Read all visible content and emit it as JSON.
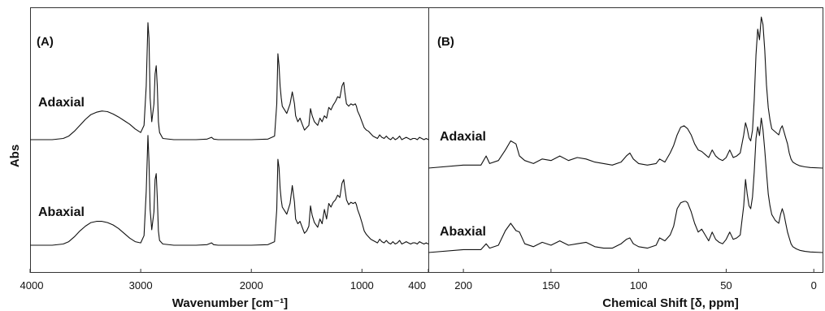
{
  "figure": {
    "y_axis_label": "Abs"
  },
  "chart_data": [
    {
      "type": "line",
      "panel_label": "(A)",
      "xlabel": "Wavenumber [cm⁻¹]",
      "ylabel": "Abs",
      "xlim": [
        4000,
        400
      ],
      "x_reversed": true,
      "xticks": [
        4000,
        3000,
        2000,
        1000,
        400
      ],
      "xtick_labels": [
        "4000",
        "3000",
        "2000",
        "1000",
        "400"
      ],
      "ylim": [
        0,
        1
      ],
      "y_ticks_shown": false,
      "grid": false,
      "series": [
        {
          "name": "Adaxial",
          "x": [
            4000,
            3800,
            3700,
            3650,
            3600,
            3550,
            3500,
            3450,
            3400,
            3350,
            3300,
            3250,
            3200,
            3150,
            3100,
            3050,
            3000,
            2970,
            2950,
            2935,
            2925,
            2915,
            2900,
            2880,
            2870,
            2860,
            2850,
            2840,
            2830,
            2800,
            2700,
            2500,
            2400,
            2360,
            2340,
            2300,
            2000,
            1850,
            1790,
            1770,
            1760,
            1750,
            1740,
            1730,
            1720,
            1700,
            1680,
            1650,
            1630,
            1610,
            1600,
            1580,
            1560,
            1540,
            1520,
            1500,
            1480,
            1465,
            1450,
            1430,
            1400,
            1380,
            1360,
            1340,
            1320,
            1300,
            1280,
            1260,
            1240,
            1220,
            1200,
            1180,
            1165,
            1155,
            1140,
            1120,
            1100,
            1080,
            1060,
            1050,
            1040,
            1020,
            1000,
            980,
            960,
            940,
            920,
            900,
            880,
            860,
            840,
            820,
            800,
            780,
            760,
            740,
            720,
            700,
            680,
            660,
            640,
            620,
            600,
            580,
            560,
            540,
            520,
            500,
            480,
            460,
            440,
            420,
            400
          ],
          "y": [
            0.0,
            0.0,
            0.01,
            0.03,
            0.07,
            0.12,
            0.17,
            0.21,
            0.23,
            0.24,
            0.235,
            0.215,
            0.19,
            0.16,
            0.13,
            0.09,
            0.06,
            0.12,
            0.45,
            0.98,
            0.85,
            0.35,
            0.15,
            0.3,
            0.55,
            0.62,
            0.45,
            0.15,
            0.06,
            0.01,
            0.0,
            0.0,
            0.005,
            0.02,
            0.005,
            0.0,
            0.0,
            0.005,
            0.03,
            0.3,
            0.72,
            0.62,
            0.45,
            0.35,
            0.28,
            0.25,
            0.22,
            0.3,
            0.4,
            0.3,
            0.2,
            0.15,
            0.18,
            0.13,
            0.08,
            0.1,
            0.12,
            0.26,
            0.2,
            0.15,
            0.12,
            0.18,
            0.15,
            0.2,
            0.18,
            0.27,
            0.25,
            0.29,
            0.32,
            0.36,
            0.35,
            0.45,
            0.48,
            0.4,
            0.3,
            0.28,
            0.3,
            0.29,
            0.3,
            0.28,
            0.24,
            0.2,
            0.15,
            0.1,
            0.08,
            0.07,
            0.05,
            0.03,
            0.02,
            0.01,
            0.04,
            0.02,
            0.01,
            0.03,
            0.01,
            0.0,
            0.02,
            0.0,
            0.01,
            0.03,
            0.0,
            0.01,
            0.02,
            0.01,
            0.0,
            0.01,
            0.01,
            0.0,
            0.02,
            0.01,
            0.0,
            0.01,
            0.0
          ]
        },
        {
          "name": "Abaxial",
          "x": [
            4000,
            3800,
            3700,
            3650,
            3600,
            3550,
            3500,
            3450,
            3400,
            3350,
            3300,
            3250,
            3200,
            3150,
            3100,
            3050,
            3000,
            2970,
            2950,
            2935,
            2925,
            2915,
            2900,
            2880,
            2870,
            2860,
            2850,
            2840,
            2830,
            2800,
            2700,
            2500,
            2400,
            2360,
            2340,
            2300,
            2000,
            1850,
            1790,
            1770,
            1760,
            1750,
            1740,
            1730,
            1720,
            1700,
            1680,
            1650,
            1630,
            1610,
            1600,
            1580,
            1560,
            1540,
            1520,
            1500,
            1480,
            1465,
            1450,
            1430,
            1400,
            1380,
            1360,
            1340,
            1320,
            1300,
            1280,
            1260,
            1240,
            1220,
            1200,
            1180,
            1165,
            1155,
            1140,
            1120,
            1100,
            1080,
            1060,
            1050,
            1040,
            1020,
            1000,
            980,
            960,
            940,
            920,
            900,
            880,
            860,
            840,
            820,
            800,
            780,
            760,
            740,
            720,
            700,
            680,
            660,
            640,
            620,
            600,
            580,
            560,
            540,
            520,
            500,
            480,
            460,
            440,
            420,
            400
          ],
          "y": [
            0.0,
            0.0,
            0.01,
            0.03,
            0.07,
            0.12,
            0.16,
            0.19,
            0.2,
            0.2,
            0.19,
            0.17,
            0.14,
            0.1,
            0.06,
            0.03,
            0.02,
            0.08,
            0.45,
            0.92,
            0.7,
            0.3,
            0.13,
            0.28,
            0.55,
            0.6,
            0.4,
            0.12,
            0.04,
            0.01,
            0.0,
            0.0,
            0.005,
            0.02,
            0.005,
            0.0,
            0.0,
            0.005,
            0.03,
            0.3,
            0.72,
            0.65,
            0.48,
            0.38,
            0.32,
            0.29,
            0.26,
            0.35,
            0.5,
            0.36,
            0.22,
            0.18,
            0.2,
            0.15,
            0.1,
            0.12,
            0.16,
            0.33,
            0.25,
            0.19,
            0.15,
            0.22,
            0.18,
            0.3,
            0.22,
            0.35,
            0.32,
            0.36,
            0.38,
            0.42,
            0.4,
            0.52,
            0.55,
            0.48,
            0.38,
            0.34,
            0.36,
            0.35,
            0.36,
            0.34,
            0.3,
            0.25,
            0.19,
            0.12,
            0.09,
            0.07,
            0.05,
            0.04,
            0.03,
            0.02,
            0.05,
            0.03,
            0.02,
            0.04,
            0.02,
            0.01,
            0.03,
            0.01,
            0.02,
            0.04,
            0.01,
            0.02,
            0.03,
            0.02,
            0.01,
            0.02,
            0.02,
            0.01,
            0.03,
            0.02,
            0.01,
            0.02,
            0.01
          ]
        }
      ]
    },
    {
      "type": "line",
      "panel_label": "(B)",
      "xlabel": "Chemical Shift  [δ, ppm]",
      "ylabel": "",
      "xlim": [
        220,
        -5
      ],
      "x_reversed": true,
      "xticks": [
        200,
        150,
        100,
        50,
        0
      ],
      "xtick_labels": [
        "200",
        "150",
        "100",
        "50",
        "0"
      ],
      "ylim": [
        0,
        1
      ],
      "y_ticks_shown": false,
      "grid": false,
      "series": [
        {
          "name": "Adaxial",
          "x": [
            220,
            200,
            190,
            187,
            185,
            180,
            176,
            173,
            170,
            168,
            165,
            160,
            155,
            150,
            145,
            140,
            135,
            130,
            125,
            120,
            115,
            110,
            107,
            105,
            103,
            100,
            95,
            90,
            88,
            85,
            82,
            80,
            78,
            76,
            74,
            73,
            72,
            70,
            68,
            66,
            64,
            62,
            60,
            58,
            56,
            54,
            52,
            50,
            48,
            46,
            44,
            42,
            40,
            39,
            38,
            37,
            36,
            35,
            34,
            33,
            32,
            31,
            30,
            29,
            28,
            27,
            26,
            25,
            24,
            22,
            20,
            19,
            18,
            17,
            16,
            15,
            14,
            13,
            12,
            10,
            8,
            5,
            2,
            -5
          ],
          "y": [
            0.0,
            0.02,
            0.02,
            0.08,
            0.03,
            0.05,
            0.12,
            0.18,
            0.16,
            0.08,
            0.05,
            0.03,
            0.06,
            0.05,
            0.08,
            0.05,
            0.07,
            0.06,
            0.04,
            0.03,
            0.02,
            0.04,
            0.08,
            0.1,
            0.06,
            0.03,
            0.02,
            0.03,
            0.06,
            0.04,
            0.1,
            0.15,
            0.22,
            0.27,
            0.28,
            0.27,
            0.26,
            0.22,
            0.16,
            0.12,
            0.11,
            0.09,
            0.07,
            0.12,
            0.08,
            0.06,
            0.05,
            0.07,
            0.12,
            0.07,
            0.08,
            0.1,
            0.22,
            0.3,
            0.26,
            0.2,
            0.18,
            0.25,
            0.45,
            0.75,
            0.92,
            0.85,
            1.0,
            0.95,
            0.78,
            0.55,
            0.4,
            0.32,
            0.26,
            0.24,
            0.22,
            0.26,
            0.28,
            0.24,
            0.2,
            0.16,
            0.1,
            0.06,
            0.04,
            0.025,
            0.015,
            0.008,
            0.004,
            0.0
          ]
        },
        {
          "name": "Abaxial",
          "x": [
            220,
            200,
            190,
            187,
            185,
            180,
            176,
            173,
            170,
            168,
            165,
            160,
            155,
            150,
            145,
            140,
            135,
            130,
            125,
            120,
            115,
            110,
            107,
            105,
            103,
            100,
            95,
            90,
            88,
            85,
            82,
            80,
            78,
            76,
            74,
            73,
            72,
            70,
            68,
            66,
            64,
            62,
            60,
            58,
            56,
            54,
            52,
            50,
            48,
            46,
            44,
            42,
            40,
            39,
            38,
            37,
            36,
            35,
            34,
            33,
            32,
            31,
            30,
            29,
            28,
            27,
            26,
            25,
            24,
            22,
            20,
            19,
            18,
            17,
            16,
            15,
            14,
            13,
            12,
            10,
            8,
            5,
            2,
            -5
          ],
          "y": [
            0.0,
            0.02,
            0.02,
            0.06,
            0.03,
            0.05,
            0.15,
            0.2,
            0.15,
            0.14,
            0.06,
            0.04,
            0.07,
            0.05,
            0.08,
            0.05,
            0.06,
            0.07,
            0.04,
            0.03,
            0.03,
            0.06,
            0.09,
            0.1,
            0.06,
            0.04,
            0.03,
            0.05,
            0.1,
            0.08,
            0.12,
            0.18,
            0.3,
            0.34,
            0.35,
            0.35,
            0.34,
            0.28,
            0.2,
            0.14,
            0.16,
            0.12,
            0.08,
            0.14,
            0.09,
            0.07,
            0.06,
            0.09,
            0.14,
            0.09,
            0.1,
            0.12,
            0.32,
            0.5,
            0.4,
            0.32,
            0.3,
            0.38,
            0.55,
            0.78,
            0.86,
            0.8,
            0.92,
            0.84,
            0.7,
            0.55,
            0.4,
            0.32,
            0.26,
            0.22,
            0.2,
            0.26,
            0.3,
            0.26,
            0.2,
            0.14,
            0.1,
            0.06,
            0.04,
            0.025,
            0.015,
            0.008,
            0.004,
            0.0
          ]
        }
      ]
    }
  ]
}
